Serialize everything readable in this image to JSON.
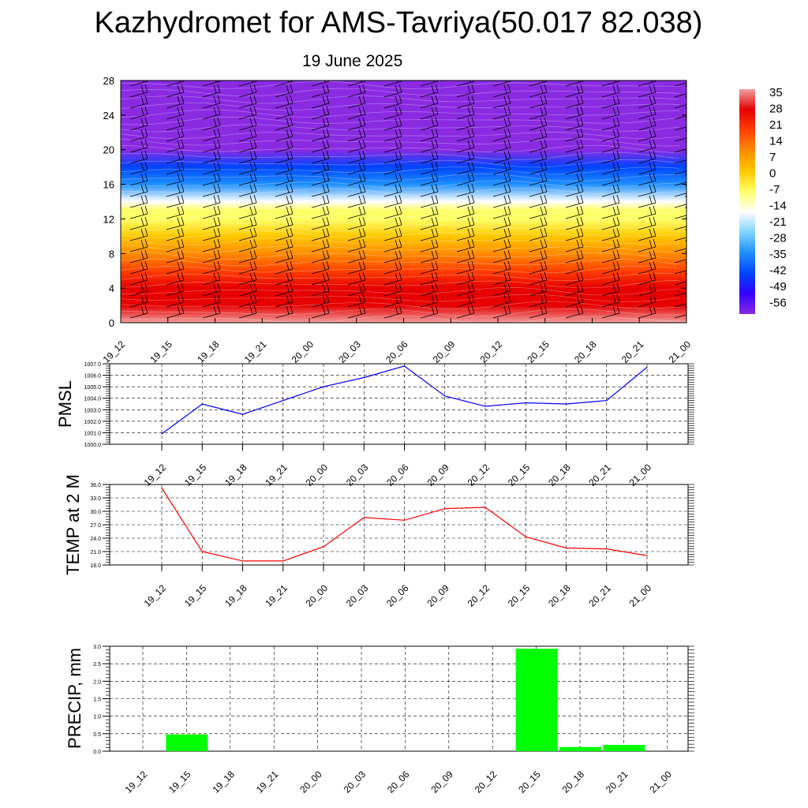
{
  "header": {
    "title": "Kazhydromet for AMS-Tavriya(50.017 82.038)",
    "date": "19 June 2025"
  },
  "colorbar": {
    "labels": [
      "35",
      "28",
      "21",
      "14",
      "7",
      "0",
      "-7",
      "-14",
      "-21",
      "-28",
      "-35",
      "-42",
      "-49",
      "-56"
    ],
    "colors": [
      "#f2a0a0",
      "#e60000",
      "#ff4000",
      "#ff8c00",
      "#ffc800",
      "#ffff66",
      "#ffffff",
      "#7fd4ff",
      "#1e90ff",
      "#0044ff",
      "#3300ff",
      "#8a2be2"
    ]
  },
  "chart_data": [
    {
      "type": "heatmap",
      "title": "",
      "ylabel": "",
      "categories": [
        "19_12",
        "19_15",
        "19_18",
        "19_21",
        "20_00",
        "20_03",
        "20_06",
        "20_09",
        "20_12",
        "20_15",
        "20_18",
        "20_21",
        "21_00"
      ],
      "y_ticks": [
        "0",
        "4",
        "8",
        "12",
        "16",
        "20",
        "24",
        "28"
      ],
      "ylim": [
        0,
        28
      ],
      "levels": [
        0,
        2,
        4,
        6,
        8,
        10,
        12,
        13,
        14,
        16,
        18,
        20,
        22,
        24,
        26,
        28
      ],
      "level_values": [
        32,
        29,
        24,
        18,
        10,
        3,
        -4,
        -10,
        -18,
        -30,
        -42,
        -52,
        -56,
        -56,
        -56,
        -58
      ],
      "colorbar_range": [
        -56,
        35
      ],
      "wind_barbs": true
    },
    {
      "type": "line",
      "ylabel": "PMSL",
      "categories": [
        "19_12",
        "19_15",
        "19_18",
        "19_21",
        "20_00",
        "20_03",
        "20_06",
        "20_09",
        "20_12",
        "20_15",
        "20_18",
        "20_21",
        "21_00"
      ],
      "y_ticks": [
        "1000.0",
        "1001.0",
        "1002.0",
        "1003.0",
        "1004.0",
        "1005.0",
        "1006.0",
        "1007.0"
      ],
      "ylim": [
        1000,
        1007
      ],
      "series": [
        {
          "values": [
            1000.9,
            1003.5,
            1002.6,
            1003.8,
            1005.0,
            1005.8,
            1006.8,
            1004.2,
            1003.3,
            1003.6,
            1003.5,
            1003.8,
            1006.7
          ],
          "color": "#0000ff"
        }
      ],
      "grid": true
    },
    {
      "type": "line",
      "ylabel": "TEMP at 2 M",
      "categories": [
        "19_12",
        "19_15",
        "19_18",
        "19_21",
        "20_00",
        "20_03",
        "20_06",
        "20_09",
        "20_12",
        "20_15",
        "20_18",
        "20_21",
        "21_00"
      ],
      "y_ticks": [
        "18.0",
        "21.0",
        "24.0",
        "27.0",
        "30.0",
        "33.0",
        "36.0"
      ],
      "ylim": [
        18,
        36
      ],
      "series": [
        {
          "values": [
            35.2,
            21.0,
            18.9,
            18.9,
            22.1,
            28.6,
            28.0,
            30.6,
            30.9,
            24.3,
            21.8,
            21.6,
            20.1
          ],
          "color": "#ff0000"
        }
      ],
      "grid": true
    },
    {
      "type": "bar",
      "ylabel": "PRECIP, mm",
      "categories": [
        "19_12",
        "19_15",
        "19_18",
        "19_21",
        "20_00",
        "20_03",
        "20_06",
        "20_09",
        "20_12",
        "20_15",
        "20_18",
        "20_21",
        "21_00"
      ],
      "y_ticks": [
        "0.0",
        "0.5",
        "1.0",
        "1.5",
        "2.0",
        "2.5",
        "3.0"
      ],
      "ylim": [
        0,
        3
      ],
      "values": [
        0,
        0.48,
        0,
        0,
        0,
        0,
        0,
        0,
        0,
        2.93,
        0.12,
        0.18,
        0
      ],
      "color": "#00ff00",
      "grid": true
    }
  ]
}
